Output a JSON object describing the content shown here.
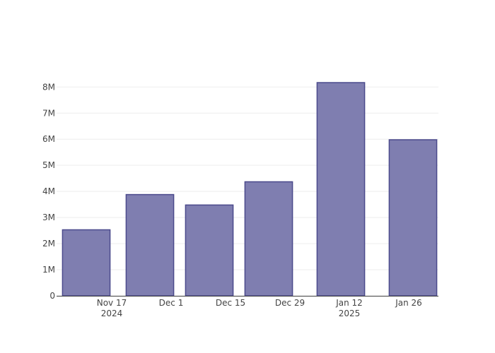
{
  "chart_data": {
    "type": "bar",
    "x": [
      "2024-11-11",
      "2024-11-26",
      "2024-12-10",
      "2024-12-24",
      "2025-01-10",
      "2025-01-27"
    ],
    "values": [
      2530000,
      3880000,
      3480000,
      4370000,
      8170000,
      5980000
    ],
    "color": "#7f7eb0",
    "edge_color": "#4b4a8c",
    "xlim": [
      "2024-11-04",
      "2025-02-02"
    ],
    "xticks": [
      {
        "value": "2024-11-17",
        "label": "Nov 17\n2024"
      },
      {
        "value": "2024-12-01",
        "label": "Dec 1"
      },
      {
        "value": "2024-12-15",
        "label": "Dec 15"
      },
      {
        "value": "2024-12-29",
        "label": "Dec 29"
      },
      {
        "value": "2025-01-12",
        "label": "Jan 12\n2025"
      },
      {
        "value": "2025-01-26",
        "label": "Jan 26"
      }
    ],
    "ylim": [
      0,
      8630000
    ],
    "yticks": [
      0,
      {
        "value": 1000000,
        "label": "1M"
      },
      {
        "value": 2000000,
        "label": "2M"
      },
      {
        "value": 3000000,
        "label": "3M"
      },
      {
        "value": 4000000,
        "label": "4M"
      },
      {
        "value": 5000000,
        "label": "5M"
      },
      {
        "value": 6000000,
        "label": "6M"
      },
      {
        "value": 7000000,
        "label": "7M"
      },
      {
        "value": 8000000,
        "label": "8M"
      }
    ],
    "grid": true
  }
}
